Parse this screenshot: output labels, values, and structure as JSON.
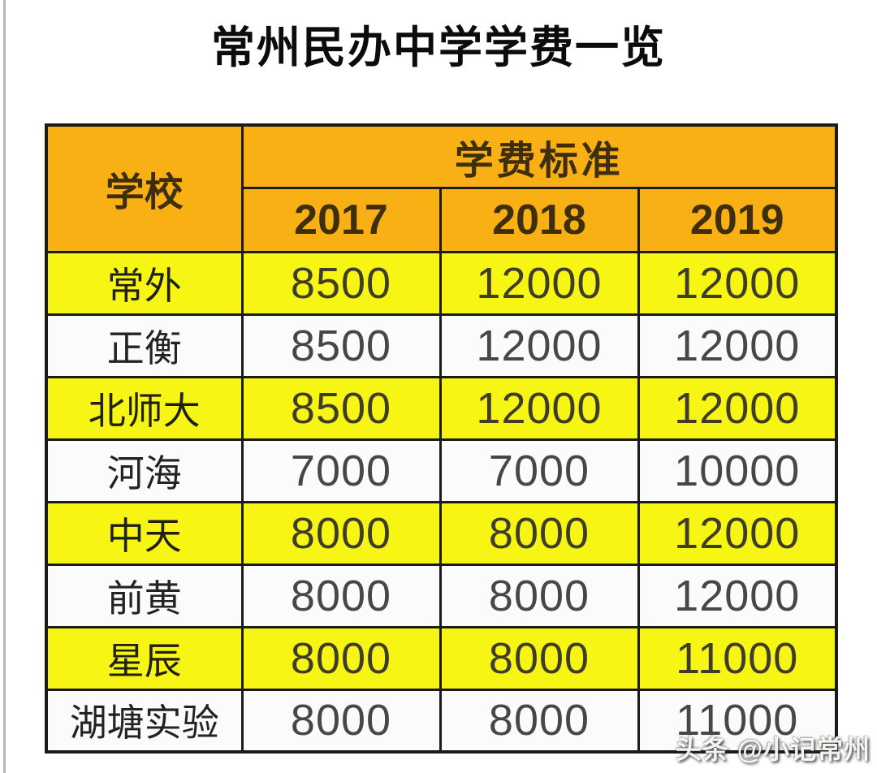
{
  "page": {
    "title": "常州民办中学学费一览"
  },
  "table": {
    "school_header": "学校",
    "fee_group_header": "学费标准",
    "year_headers": [
      "2017",
      "2018",
      "2019"
    ]
  },
  "chart_data": {
    "type": "table",
    "title": "常州民办中学学费一览",
    "column_group_header": "学费标准",
    "columns": [
      "学校",
      "2017",
      "2018",
      "2019"
    ],
    "rows": [
      [
        "常外",
        8500,
        12000,
        12000
      ],
      [
        "正衡",
        8500,
        12000,
        12000
      ],
      [
        "北师大",
        8500,
        12000,
        12000
      ],
      [
        "河海",
        7000,
        7000,
        10000
      ],
      [
        "中天",
        8000,
        8000,
        12000
      ],
      [
        "前黄",
        8000,
        8000,
        12000
      ],
      [
        "星辰",
        8000,
        8000,
        11000
      ],
      [
        "湖塘实验",
        8000,
        8000,
        11000
      ]
    ],
    "row_highlight_color_hex": "#f7f513",
    "header_color_hex": "#f9b014",
    "layout": "striped rows alternating yellow/white, orange two-level header, black grid borders"
  },
  "watermark": {
    "text": "头条 @小记常州"
  }
}
